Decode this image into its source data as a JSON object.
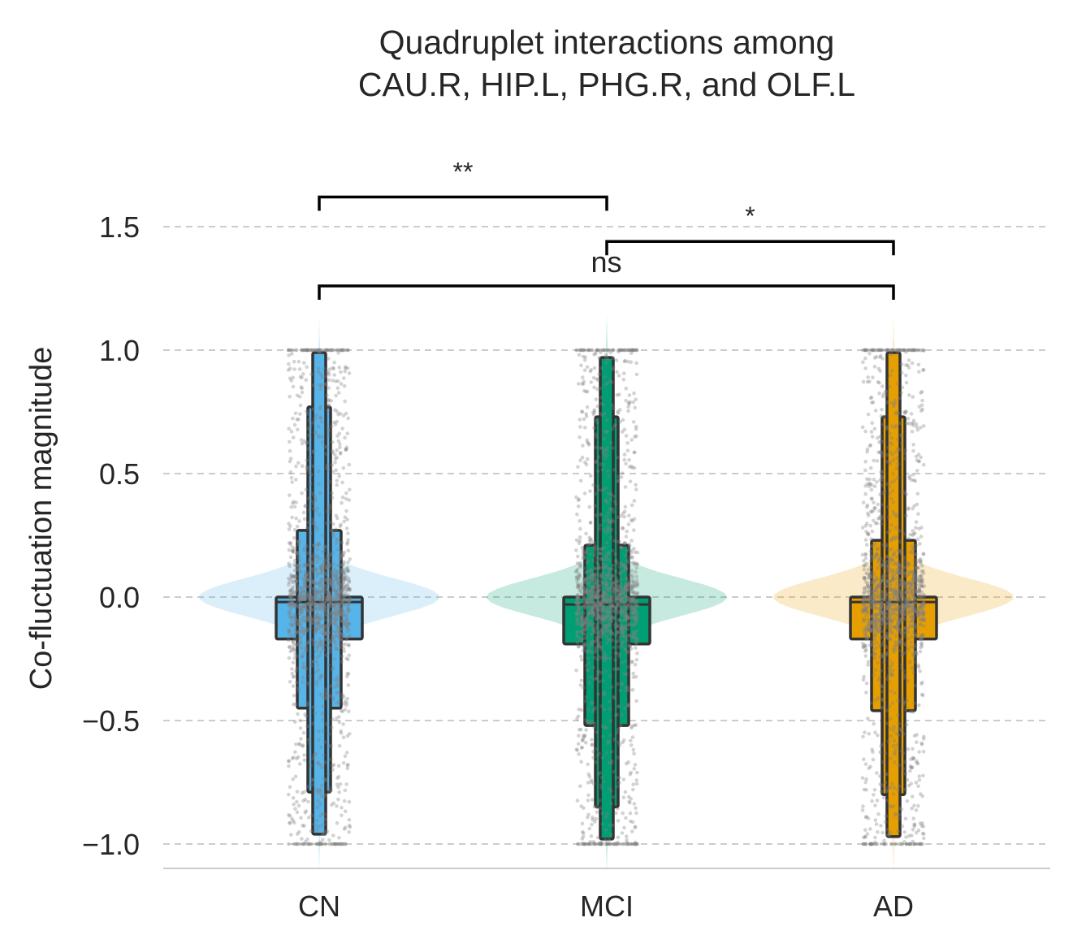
{
  "chart_data": {
    "type": "violin+boxenplot+strip",
    "title_lines": [
      "Quadruplet interactions among",
      "CAU.R, HIP.L, PHG.R, and OLF.L"
    ],
    "xlabel": "",
    "ylabel": "Co-fluctuation magnitude",
    "ylim": [
      -1.1,
      1.65
    ],
    "yticks": [
      1.5,
      1.0,
      0.5,
      0.0,
      -0.5,
      -1.0
    ],
    "ytick_labels": [
      "1.5",
      "1.0",
      "0.5",
      "0.0",
      "−0.5",
      "−1.0"
    ],
    "grid": "horizontal dashed",
    "categories": [
      "CN",
      "MCI",
      "AD"
    ],
    "groups": [
      {
        "name": "CN",
        "color": "#56B4E9",
        "violin_color": "#56B4E9",
        "violin_alpha": 0.22,
        "median": -0.02,
        "boxes": [
          {
            "lo": -0.17,
            "hi": 0.0
          },
          {
            "lo": -0.45,
            "hi": 0.27
          },
          {
            "lo": -0.79,
            "hi": 0.77
          },
          {
            "lo": -0.96,
            "hi": 0.99
          }
        ],
        "violin_range": [
          -1.12,
          1.14
        ],
        "violin_peak": 0.0
      },
      {
        "name": "MCI",
        "color": "#009E73",
        "violin_color": "#009E73",
        "violin_alpha": 0.22,
        "median": -0.03,
        "boxes": [
          {
            "lo": -0.19,
            "hi": 0.0
          },
          {
            "lo": -0.52,
            "hi": 0.21
          },
          {
            "lo": -0.85,
            "hi": 0.73
          },
          {
            "lo": -0.98,
            "hi": 0.97
          }
        ],
        "violin_range": [
          -1.12,
          1.15
        ],
        "violin_peak": 0.0
      },
      {
        "name": "AD",
        "color": "#E69F00",
        "violin_color": "#E69F00",
        "violin_alpha": 0.22,
        "median": -0.02,
        "boxes": [
          {
            "lo": -0.17,
            "hi": 0.0
          },
          {
            "lo": -0.46,
            "hi": 0.23
          },
          {
            "lo": -0.8,
            "hi": 0.73
          },
          {
            "lo": -0.97,
            "hi": 0.99
          }
        ],
        "violin_range": [
          -1.12,
          1.14
        ],
        "violin_peak": 0.0
      }
    ],
    "strip_color": "#808080",
    "significance": [
      {
        "from": "CN",
        "to": "MCI",
        "label": "**",
        "y": 1.62
      },
      {
        "from": "MCI",
        "to": "AD",
        "label": "*",
        "y": 1.44
      },
      {
        "from": "CN",
        "to": "AD",
        "label": "ns",
        "y": 1.26
      }
    ]
  }
}
